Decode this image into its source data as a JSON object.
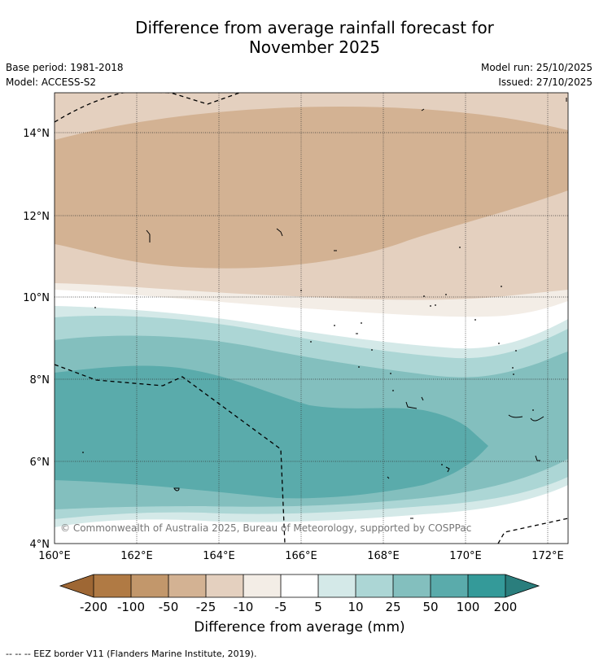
{
  "title_line1": "Difference from average rainfall forecast for",
  "title_line2": "November 2025",
  "base_period": "Base period: 1981-2018",
  "model": "Model: ACCESS-S2",
  "model_run": "Model run: 25/10/2025",
  "issued": "Issued: 27/10/2025",
  "copyright": "© Commonwealth of Australia 2025, Bureau of Meteorology, supported by COSPPac",
  "lat_labels": [
    "14°N",
    "12°N",
    "10°N",
    "8°N",
    "6°N",
    "4°N"
  ],
  "lon_labels": [
    "160°E",
    "162°E",
    "164°E",
    "166°E",
    "168°E",
    "170°E",
    "172°E"
  ],
  "colorbar": {
    "title": "Difference from average (mm)",
    "tick_labels": [
      "-200",
      "-100",
      "-50",
      "-25",
      "-10",
      "-5",
      "5",
      "10",
      "25",
      "50",
      "100",
      "200"
    ],
    "colors": [
      "#9e6734",
      "#b07a44",
      "#c2976b",
      "#d3b293",
      "#e4d0bf",
      "#f3ede6",
      "#ffffff",
      "#d4e9e8",
      "#acd6d5",
      "#83bfbe",
      "#5aabab",
      "#349a99",
      "#2a7e7d"
    ]
  },
  "footnote": "--  --  -- EEZ border V11 (Flanders Marine Institute, 2019)."
}
